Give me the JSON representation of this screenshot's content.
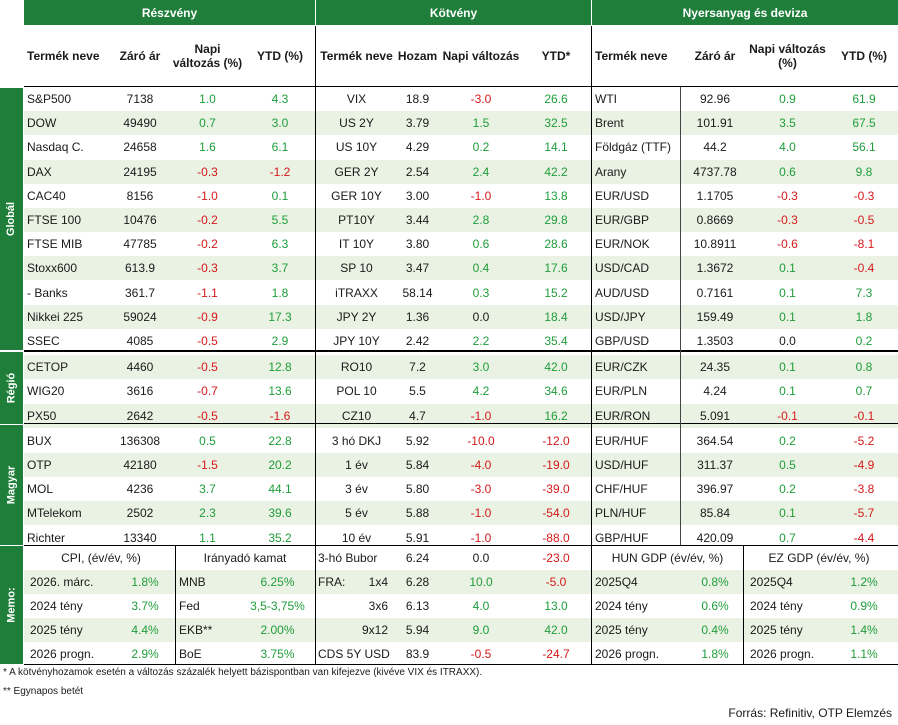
{
  "headers": {
    "equity": "Részvény",
    "bond": "Kötvény",
    "commodity": "Nyersanyag és deviza"
  },
  "colheads": {
    "eq": [
      "Termék neve",
      "Záró ár",
      "Napi változás (%)",
      "YTD (%)"
    ],
    "bd": [
      "Termék neve",
      "Hozam",
      "Napi változás",
      "YTD*"
    ],
    "cm": [
      "Termék neve",
      "Záró ár",
      "Napi változás (%)",
      "YTD (%)"
    ]
  },
  "sections": {
    "global": "Globál",
    "region": "Régió",
    "hungary": "Magyar",
    "memo": "Memo:"
  },
  "rows": [
    {
      "eq": [
        "S&P500",
        "7138",
        "1.0",
        "4.3"
      ],
      "bd": [
        "VIX",
        "18.9",
        "-3.0",
        "26.6"
      ],
      "cm": [
        "WTI",
        "92.96",
        "0.9",
        "61.9"
      ]
    },
    {
      "eq": [
        "DOW",
        "49490",
        "0.7",
        "3.0"
      ],
      "bd": [
        "US 2Y",
        "3.79",
        "1.5",
        "32.5"
      ],
      "cm": [
        "Brent",
        "101.91",
        "3.5",
        "67.5"
      ]
    },
    {
      "eq": [
        "Nasdaq C.",
        "24658",
        "1.6",
        "6.1"
      ],
      "bd": [
        "US 10Y",
        "4.29",
        "0.2",
        "14.1"
      ],
      "cm": [
        "Földgáz (TTF)",
        "44.2",
        "4.0",
        "56.1"
      ]
    },
    {
      "eq": [
        "DAX",
        "24195",
        "-0.3",
        "-1.2"
      ],
      "bd": [
        "GER 2Y",
        "2.54",
        "2.4",
        "42.2"
      ],
      "cm": [
        "Arany",
        "4737.78",
        "0.6",
        "9.8"
      ]
    },
    {
      "eq": [
        "CAC40",
        "8156",
        "-1.0",
        "0.1"
      ],
      "bd": [
        "GER 10Y",
        "3.00",
        "-1.0",
        "13.8"
      ],
      "cm": [
        "EUR/USD",
        "1.1705",
        "-0.3",
        "-0.3"
      ]
    },
    {
      "eq": [
        "FTSE 100",
        "10476",
        "-0.2",
        "5.5"
      ],
      "bd": [
        "PT10Y",
        "3.44",
        "2.8",
        "29.8"
      ],
      "cm": [
        "EUR/GBP",
        "0.8669",
        "-0.3",
        "-0.5"
      ]
    },
    {
      "eq": [
        "FTSE MIB",
        "47785",
        "-0.2",
        "6.3"
      ],
      "bd": [
        "IT 10Y",
        "3.80",
        "0.6",
        "28.6"
      ],
      "cm": [
        "EUR/NOK",
        "10.8911",
        "-0.6",
        "-8.1"
      ]
    },
    {
      "eq": [
        "Stoxx600",
        "613.9",
        "-0.3",
        "3.7"
      ],
      "bd": [
        "SP 10",
        "3.47",
        "0.4",
        "17.6"
      ],
      "cm": [
        "USD/CAD",
        "1.3672",
        "0.1",
        "-0.4"
      ]
    },
    {
      "eq": [
        " - Banks",
        "361.7",
        "-1.1",
        "1.8"
      ],
      "bd": [
        "iTRAXX",
        "58.14",
        "0.3",
        "15.2"
      ],
      "cm": [
        "AUD/USD",
        "0.7161",
        "0.1",
        "7.3"
      ]
    },
    {
      "eq": [
        "Nikkei 225",
        "59024",
        "-0.9",
        "17.3"
      ],
      "bd": [
        "JPY 2Y",
        "1.36",
        "0.0",
        "18.4"
      ],
      "cm": [
        "USD/JPY",
        "159.49",
        "0.1",
        "1.8"
      ]
    },
    {
      "eq": [
        "SSEC",
        "4085",
        "-0.5",
        "2.9"
      ],
      "bd": [
        "JPY 10Y",
        "2.42",
        "2.2",
        "35.4"
      ],
      "cm": [
        "GBP/USD",
        "1.3503",
        "0.0",
        "0.2"
      ]
    },
    {
      "eq": [
        "CETOP",
        "4460",
        "-0.5",
        "12.8"
      ],
      "bd": [
        "RO10",
        "7.2",
        "3.0",
        "42.0"
      ],
      "cm": [
        "EUR/CZK",
        "24.35",
        "0.1",
        "0.8"
      ]
    },
    {
      "eq": [
        "WIG20",
        "3616",
        "-0.7",
        "13.6"
      ],
      "bd": [
        "POL 10",
        "5.5",
        "4.2",
        "34.6"
      ],
      "cm": [
        "EUR/PLN",
        "4.24",
        "0.1",
        "0.7"
      ]
    },
    {
      "eq": [
        "PX50",
        "2642",
        "-0.5",
        "-1.6"
      ],
      "bd": [
        "CZ10",
        "4.7",
        "-1.0",
        "16.2"
      ],
      "cm": [
        "EUR/RON",
        "5.091",
        "-0.1",
        "-0.1"
      ]
    },
    {
      "eq": [
        "BUX",
        "136308",
        "0.5",
        "22.8"
      ],
      "bd": [
        "3 hó DKJ",
        "5.92",
        "-10.0",
        "-12.0"
      ],
      "cm": [
        "EUR/HUF",
        "364.54",
        "0.2",
        "-5.2"
      ]
    },
    {
      "eq": [
        "OTP",
        "42180",
        "-1.5",
        "20.2"
      ],
      "bd": [
        "1 év",
        "5.84",
        "-4.0",
        "-19.0"
      ],
      "cm": [
        "USD/HUF",
        "311.37",
        "0.5",
        "-4.9"
      ]
    },
    {
      "eq": [
        "MOL",
        "4236",
        "3.7",
        "44.1"
      ],
      "bd": [
        "3 év",
        "5.80",
        "-3.0",
        "-39.0"
      ],
      "cm": [
        "CHF/HUF",
        "396.97",
        "0.2",
        "-3.8"
      ]
    },
    {
      "eq": [
        "MTelekom",
        "2502",
        "2.3",
        "39.6"
      ],
      "bd": [
        "5 év",
        "5.88",
        "-1.0",
        "-54.0"
      ],
      "cm": [
        "PLN/HUF",
        "85.84",
        "0.1",
        "-5.7"
      ]
    },
    {
      "eq": [
        "Richter",
        "13340",
        "1.1",
        "35.2"
      ],
      "bd": [
        "10 év",
        "5.91",
        "-1.0",
        "-88.0"
      ],
      "cm": [
        "GBP/HUF",
        "420.09",
        "0.7",
        "-4.4"
      ]
    }
  ],
  "memo": {
    "cpi_title": "CPI, (év/év, %)",
    "rate_title": "Irányadó kamat",
    "cpi": [
      [
        "2026. márc.",
        "1.8%"
      ],
      [
        "2024 tény",
        "3.7%"
      ],
      [
        "2025 tény",
        "4.4%"
      ],
      [
        "2026 progn.",
        "2.9%"
      ]
    ],
    "rates": [
      [
        "MNB",
        "6.25%"
      ],
      [
        "Fed",
        "3,5-3,75%"
      ],
      [
        "EKB**",
        "2.00%"
      ],
      [
        "BoE",
        "3.75%"
      ]
    ],
    "bubor": [
      {
        "label": "3-hó Bubor",
        "sub": "",
        "v": [
          "6.24",
          "0.0",
          "-23.0"
        ]
      },
      {
        "label": "FRA:",
        "sub": "1x4",
        "v": [
          "6.28",
          "10.0",
          "-5.0"
        ]
      },
      {
        "label": "",
        "sub": "3x6",
        "v": [
          "6.13",
          "4.0",
          "13.0"
        ]
      },
      {
        "label": "",
        "sub": "9x12",
        "v": [
          "5.94",
          "9.0",
          "42.0"
        ]
      },
      {
        "label": "CDS 5Y USD",
        "sub": "",
        "v": [
          "83.9",
          "-0.5",
          "-24.7"
        ]
      }
    ],
    "hun_title": "HUN GDP (év/év, %)",
    "ez_title": "EZ GDP (év/év, %)",
    "hun": [
      [
        "2025Q4",
        "0.8%"
      ],
      [
        "2024 tény",
        "0.6%"
      ],
      [
        "2025 tény",
        "0.4%"
      ],
      [
        "2026 progn.",
        "1.8%"
      ]
    ],
    "ez": [
      [
        "2025Q4",
        "1.2%"
      ],
      [
        "2024 tény",
        "0.9%"
      ],
      [
        "2025 tény",
        "1.4%"
      ],
      [
        "2026 progn.",
        "1.1%"
      ]
    ]
  },
  "footnotes": {
    "f1": "* A kötvényhozamok esetén a változás százalék helyett bázispontban van kifejezve (kivéve VIX és ITRAXX).",
    "f2": "** Egynapos betét",
    "source": "Forrás: Refinitiv, OTP Elemzés"
  },
  "colors": {
    "green_header": "#1f7f3a",
    "positive": "#1f9d3a",
    "negative": "#d6191b",
    "band": "#eaf2e3"
  }
}
